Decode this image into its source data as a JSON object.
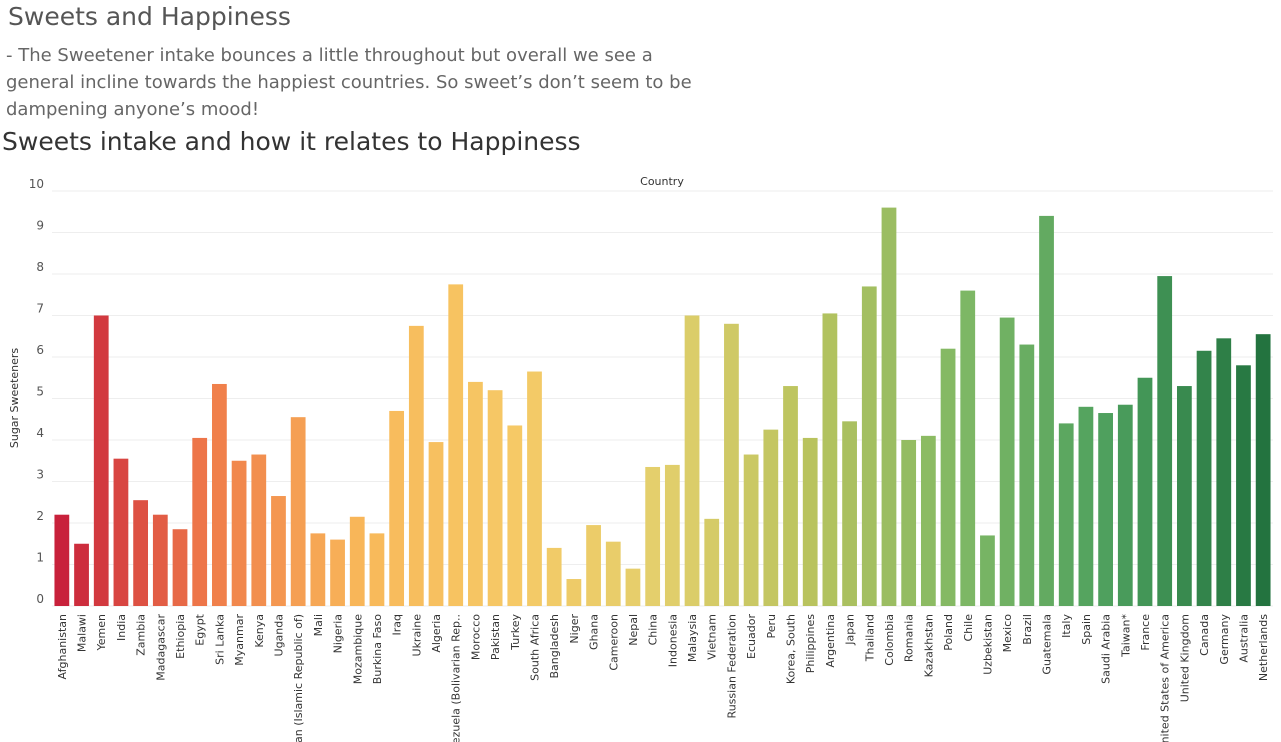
{
  "dashboard": {
    "title": "Sweets and Happiness",
    "description": "- The Sweetener intake bounces a little throughout but overall we see a general incline towards the happiest countries. So sweet’s don’t seem to be dampening anyone’s mood!"
  },
  "chart_data": {
    "type": "bar",
    "title": "Sweets intake and how it relates to Happiness",
    "column_header": "Country",
    "ylabel": "Sugar Sweeteners",
    "ylim": [
      0,
      10
    ],
    "yticks": [
      0,
      1,
      2,
      3,
      4,
      5,
      6,
      7,
      8,
      9,
      10
    ],
    "grid": true,
    "color_scale": [
      "#c8213b",
      "#f07d4a",
      "#f8b85a",
      "#f6c966",
      "#e3cf6c",
      "#b8c35e",
      "#7fb865",
      "#4c9f5e",
      "#23733f"
    ],
    "categories": [
      "Afghanistan",
      "Malawi",
      "Yemen",
      "India",
      "Zambia",
      "Madagascar",
      "Ethiopia",
      "Egypt",
      "Sri Lanka",
      "Myanmar",
      "Kenya",
      "Uganda",
      "Iran (Islamic Republic of)",
      "Mali",
      "Nigeria",
      "Mozambique",
      "Burkina Faso",
      "Iraq",
      "Ukraine",
      "Algeria",
      "Venezuela (Bolivarian Rep..",
      "Morocco",
      "Pakistan",
      "Turkey",
      "South Africa",
      "Bangladesh",
      "Niger",
      "Ghana",
      "Cameroon",
      "Nepal",
      "China",
      "Indonesia",
      "Malaysia",
      "Vietnam",
      "Russian Federation",
      "Ecuador",
      "Peru",
      "Korea, South",
      "Philippines",
      "Argentina",
      "Japan",
      "Thailand",
      "Colombia",
      "Romania",
      "Kazakhstan",
      "Poland",
      "Chile",
      "Uzbekistan",
      "Mexico",
      "Brazil",
      "Guatemala",
      "Italy",
      "Spain",
      "Saudi Arabia",
      "Taiwan*",
      "France",
      "United States of America",
      "United Kingdom",
      "Canada",
      "Germany",
      "Australia",
      "Netherlands"
    ],
    "values": [
      2.2,
      1.5,
      7.0,
      3.55,
      2.55,
      2.2,
      1.85,
      4.05,
      5.35,
      3.5,
      3.65,
      2.65,
      4.55,
      1.75,
      1.6,
      2.15,
      1.75,
      4.7,
      6.75,
      3.95,
      7.75,
      5.4,
      5.2,
      4.35,
      5.65,
      1.4,
      0.65,
      1.95,
      1.55,
      0.9,
      3.35,
      3.4,
      7.0,
      2.1,
      6.8,
      3.65,
      4.25,
      5.3,
      4.05,
      7.05,
      4.45,
      7.7,
      9.6,
      4.0,
      4.1,
      6.2,
      7.6,
      1.7,
      6.95,
      6.3,
      9.4,
      4.4,
      4.8,
      4.65,
      4.85,
      5.5,
      7.95,
      5.3,
      6.15,
      6.45,
      5.8,
      6.55
    ]
  }
}
